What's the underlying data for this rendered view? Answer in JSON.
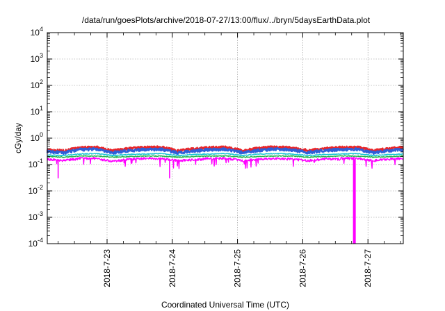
{
  "chart_data": {
    "type": "line",
    "title": "/data/run/goesPlots/archive/2018-07-27/13:00/flux/../bryn/5daysEarthData.plot",
    "xlabel": "Coordinated Universal Time (UTC)",
    "ylabel": "cGy/day",
    "yscale": "log",
    "ylim": [
      0.0001,
      10000
    ],
    "xlim": [
      "2018-07-22 02:00",
      "2018-07-27 13:00"
    ],
    "y_ticks": [
      {
        "base": "10",
        "exp": "-4",
        "value": 0.0001
      },
      {
        "base": "10",
        "exp": "-3",
        "value": 0.001
      },
      {
        "base": "10",
        "exp": "-2",
        "value": 0.01
      },
      {
        "base": "10",
        "exp": "-1",
        "value": 0.1
      },
      {
        "base": "10",
        "exp": "0",
        "value": 1
      },
      {
        "base": "10",
        "exp": "1",
        "value": 10
      },
      {
        "base": "10",
        "exp": "2",
        "value": 100
      },
      {
        "base": "10",
        "exp": "3",
        "value": 1000
      },
      {
        "base": "10",
        "exp": "4",
        "value": 10000
      }
    ],
    "x_ticks": [
      {
        "label": "2018-7-23",
        "value": "2018-07-23 00:00"
      },
      {
        "label": "2018-7-24",
        "value": "2018-07-24 00:00"
      },
      {
        "label": "2018-7-25",
        "value": "2018-07-25 00:00"
      },
      {
        "label": "2018-7-26",
        "value": "2018-07-26 00:00"
      },
      {
        "label": "2018-7-27",
        "value": "2018-07-27 00:00"
      }
    ],
    "grid": true,
    "x": [
      "2018-07-22 02:00",
      "2018-07-22 08:00",
      "2018-07-22 14:00",
      "2018-07-22 20:00",
      "2018-07-23 02:00",
      "2018-07-23 08:00",
      "2018-07-23 14:00",
      "2018-07-23 20:00",
      "2018-07-24 02:00",
      "2018-07-24 08:00",
      "2018-07-24 14:00",
      "2018-07-24 20:00",
      "2018-07-25 02:00",
      "2018-07-25 08:00",
      "2018-07-25 14:00",
      "2018-07-25 20:00",
      "2018-07-26 02:00",
      "2018-07-26 08:00",
      "2018-07-26 14:00",
      "2018-07-26 20:00",
      "2018-07-27 02:00",
      "2018-07-27 08:00",
      "2018-07-27 13:00"
    ],
    "series": [
      {
        "color": "#e8262a",
        "values": [
          0.36,
          0.33,
          0.43,
          0.45,
          0.33,
          0.4,
          0.44,
          0.45,
          0.33,
          0.39,
          0.44,
          0.45,
          0.33,
          0.42,
          0.46,
          0.42,
          0.34,
          0.4,
          0.44,
          0.45,
          0.33,
          0.4,
          0.44
        ]
      },
      {
        "color": "#2e5fd9",
        "values": [
          0.31,
          0.28,
          0.37,
          0.38,
          0.28,
          0.34,
          0.37,
          0.38,
          0.28,
          0.33,
          0.37,
          0.38,
          0.28,
          0.35,
          0.39,
          0.36,
          0.29,
          0.34,
          0.37,
          0.38,
          0.28,
          0.34,
          0.37
        ]
      },
      {
        "color": "#19c4d4",
        "values": [
          0.23,
          0.22,
          0.25,
          0.26,
          0.22,
          0.24,
          0.25,
          0.26,
          0.22,
          0.24,
          0.25,
          0.26,
          0.22,
          0.25,
          0.26,
          0.25,
          0.22,
          0.24,
          0.25,
          0.26,
          0.22,
          0.24,
          0.25
        ]
      },
      {
        "color": "#22b24c",
        "values": [
          0.2,
          0.19,
          0.21,
          0.21,
          0.19,
          0.2,
          0.21,
          0.21,
          0.19,
          0.2,
          0.21,
          0.21,
          0.19,
          0.2,
          0.21,
          0.21,
          0.19,
          0.2,
          0.21,
          0.21,
          0.19,
          0.2,
          0.21
        ]
      },
      {
        "color": "#ff00ff",
        "values": [
          0.16,
          0.14,
          0.17,
          0.17,
          0.13,
          0.16,
          0.17,
          0.17,
          0.14,
          0.15,
          0.17,
          0.17,
          0.14,
          0.16,
          0.17,
          0.16,
          0.14,
          0.16,
          0.0001,
          0.17,
          0.14,
          0.16,
          0.17
        ]
      }
    ],
    "notable_dips": [
      {
        "x": "2018-07-22 06:00",
        "y": 0.03
      },
      {
        "x": "2018-07-23 23:00",
        "y": 0.03
      },
      {
        "x": "2018-07-26 19:00",
        "y": 0.0001
      }
    ]
  }
}
